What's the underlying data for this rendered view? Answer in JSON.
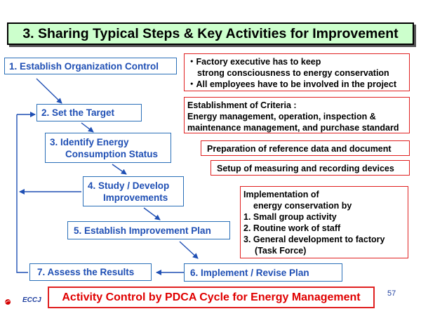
{
  "title": "3. Sharing Typical Steps & Key Activities for Improvement",
  "steps": {
    "s1": "1. Establish Organization Control",
    "s2": "2. Set the Target",
    "s3_line1": "3. Identify Energy",
    "s3_line2": "Consumption Status",
    "s4_line1": "4. Study / Develop",
    "s4_line2": "Improvements",
    "s5": "5. Establish Improvement Plan",
    "s6": "6. Implement / Revise Plan",
    "s7": "7. Assess the Results"
  },
  "notes": {
    "org_line1": "・Factory executive has to keep",
    "org_line2": "strong consciousness to energy conservation",
    "org_line3": "・All employees have to be involved in the project",
    "criteria_line1": "Establishment of Criteria :",
    "criteria_line2": "Energy management, operation, inspection &",
    "criteria_line3": "maintenance management, and purchase standard",
    "reference": "Preparation of reference data and document",
    "measuring": "Setup of measuring and recording devices",
    "impl_line1": "Implementation of",
    "impl_line2": "energy conservation by",
    "impl_line3": "1. Small group activity",
    "impl_line4": "2. Routine work of staff",
    "impl_line5": "3. General development to factory",
    "impl_line6": "(Task Force)"
  },
  "banner": "Activity Control by PDCA Cycle  for Energy Management",
  "page_number": "57",
  "logo_text": "ECCJ",
  "colors": {
    "title_bg": "#ccffcc",
    "step_text": "#1f4fb4",
    "step_border": "#2a6fb8",
    "note_border": "#e02020",
    "banner_text": "#e00000"
  }
}
